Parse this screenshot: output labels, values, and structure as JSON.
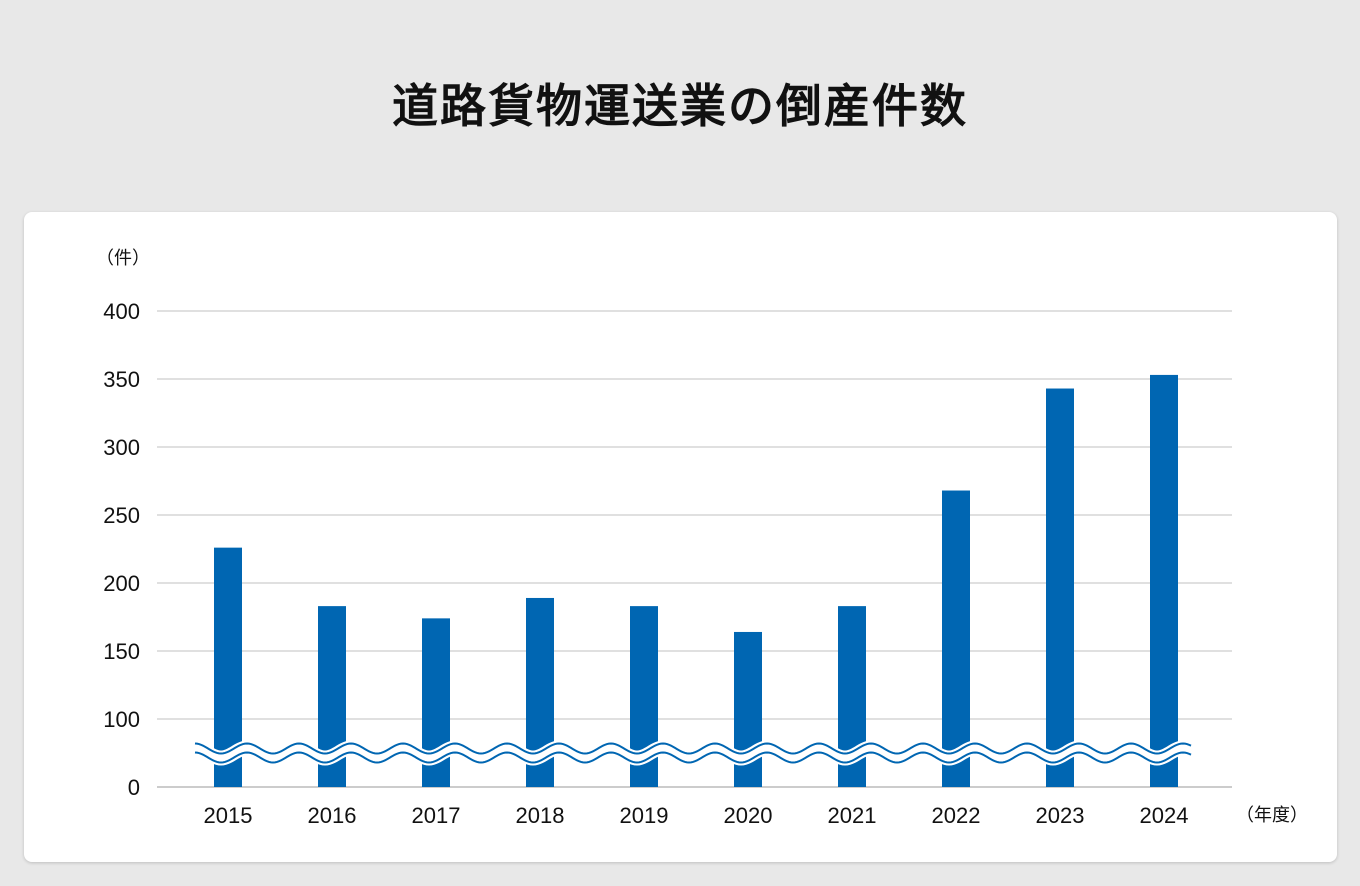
{
  "title": "道路貨物運送業の倒産件数",
  "chart_data": {
    "type": "bar",
    "title": "道路貨物運送業の倒産件数",
    "ylabel": "（件）",
    "xlabel": "（年度）",
    "categories": [
      "2015",
      "2016",
      "2017",
      "2018",
      "2019",
      "2020",
      "2021",
      "2022",
      "2023",
      "2024"
    ],
    "values": [
      226,
      183,
      174,
      189,
      183,
      164,
      183,
      268,
      343,
      353
    ],
    "yticks": [
      "0",
      "100",
      "150",
      "200",
      "250",
      "300",
      "350",
      "400"
    ],
    "axis_break": true,
    "grid": true,
    "bar_color": "#0066b2"
  }
}
